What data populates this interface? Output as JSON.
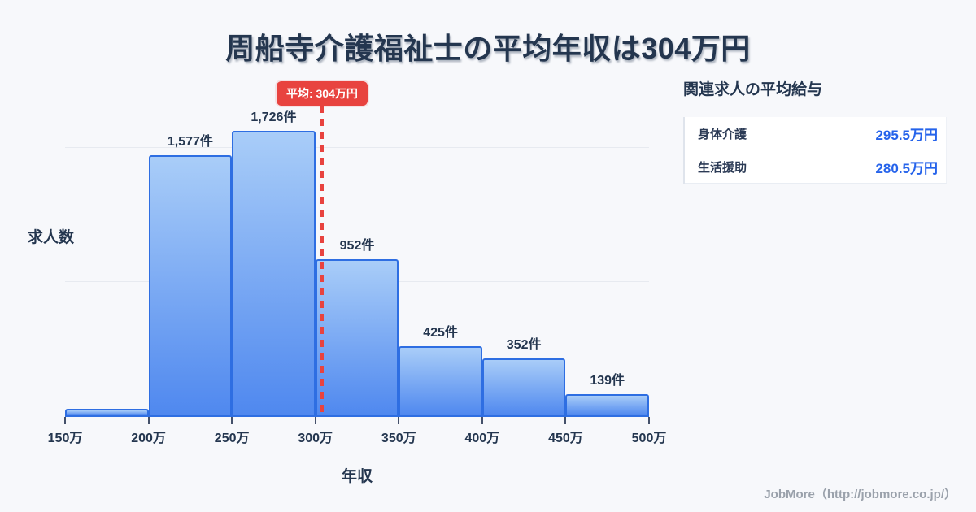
{
  "title": "周船寺介護福祉士の平均年収は304万円",
  "chart_data": {
    "type": "bar",
    "title": "周船寺介護福祉士の平均年収は304万円",
    "xlabel": "年収",
    "ylabel": "求人数",
    "x_range": [
      150,
      500
    ],
    "x_unit": "万円",
    "x_tick_labels": [
      "150万",
      "200万",
      "250万",
      "300万",
      "350万",
      "400万",
      "450万",
      "500万"
    ],
    "grid": "horizontal",
    "y_gridline_count": 5,
    "bins": [
      {
        "range_start": 150,
        "range_end": 200,
        "count": 49,
        "label": "",
        "estimated": true
      },
      {
        "range_start": 200,
        "range_end": 250,
        "count": 1577,
        "label": "1,577件"
      },
      {
        "range_start": 250,
        "range_end": 300,
        "count": 1726,
        "label": "1,726件"
      },
      {
        "range_start": 300,
        "range_end": 350,
        "count": 952,
        "label": "952件"
      },
      {
        "range_start": 350,
        "range_end": 400,
        "count": 425,
        "label": "425件"
      },
      {
        "range_start": 400,
        "range_end": 450,
        "count": 352,
        "label": "352件"
      },
      {
        "range_start": 450,
        "range_end": 500,
        "count": 139,
        "label": "139件"
      }
    ],
    "average_line": {
      "value": 304,
      "badge": "平均: 304万円"
    }
  },
  "side_panel": {
    "heading": "関連求人の平均給与",
    "rows": [
      {
        "label": "身体介護",
        "value": "295.5万円"
      },
      {
        "label": "生活援助",
        "value": "280.5万円"
      }
    ]
  },
  "footer": {
    "credit": "JobMore（http://jobmore.co.jp/）"
  },
  "colors": {
    "background": "#f7f8fb",
    "heading_text": "#24364f",
    "bar_fill_top": "#a9cdf8",
    "bar_fill_bottom": "#4f88ef",
    "bar_border": "#2e6ee2",
    "average_red": "#e8433f",
    "value_blue": "#2563eb",
    "gridline": "#e7eaf0",
    "tick": "#44506a",
    "footer_gray": "#9aa1ab",
    "row_bg": "#ffffff",
    "row_border": "#e9edf3"
  }
}
